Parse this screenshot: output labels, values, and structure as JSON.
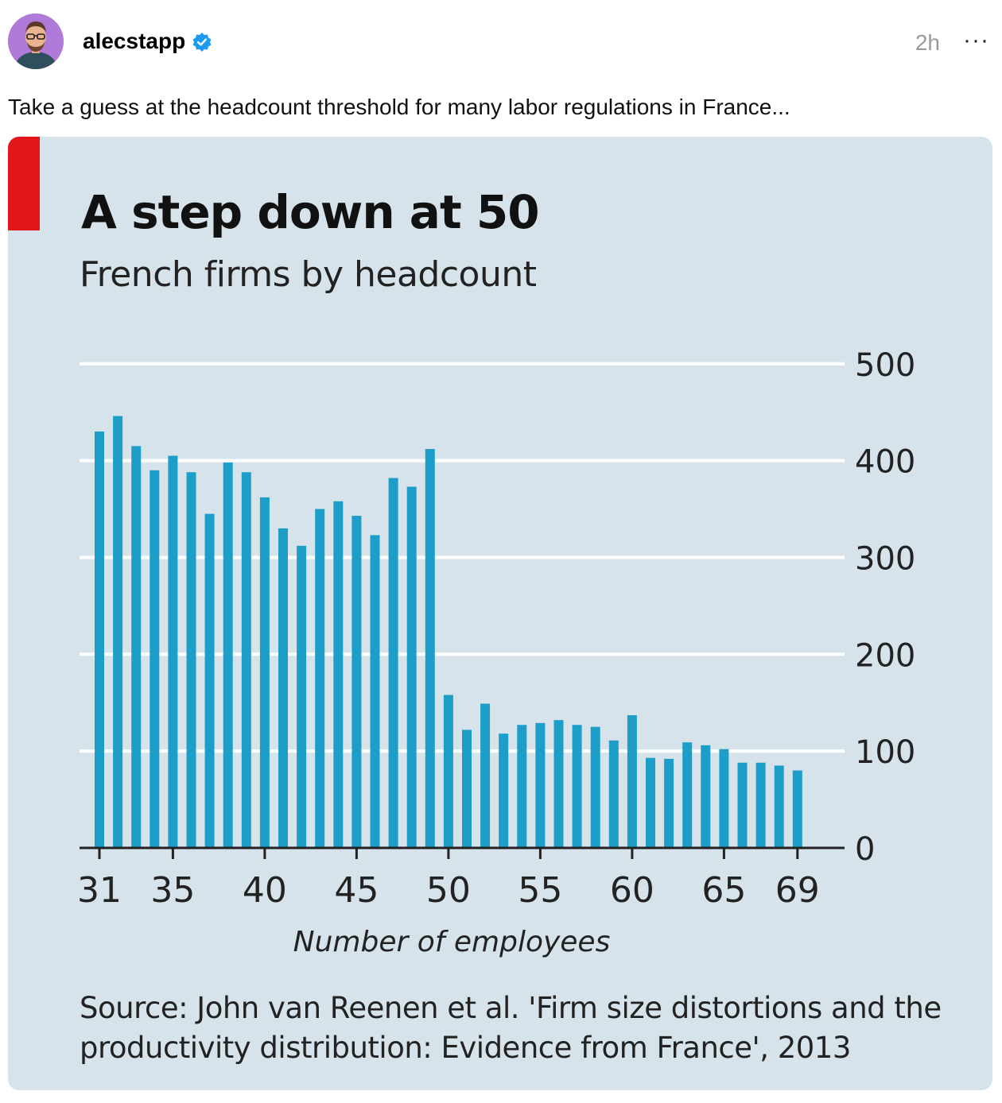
{
  "post": {
    "username": "alecstapp",
    "timestamp": "2h",
    "more_label": "···",
    "text": "Take a guess at the headcount threshold for many labor regulations in France...",
    "avatar_icon": "person-avatar-icon",
    "verified_icon": "verified-badge-icon"
  },
  "colors": {
    "bar": "#1c9ec9",
    "card_bg": "#d7e3ea",
    "accent_red": "#e3161b",
    "verified": "#1d9bf0"
  },
  "chart_data": {
    "type": "bar",
    "title": "A step down at 50",
    "subtitle": "French firms by headcount",
    "xlabel": "Number of employees",
    "ylabel": "",
    "ylim": [
      0,
      500
    ],
    "yticks": [
      0,
      100,
      200,
      300,
      400,
      500
    ],
    "xticks": [
      31,
      35,
      40,
      45,
      50,
      55,
      60,
      65,
      69
    ],
    "grid": true,
    "categories": [
      31,
      32,
      33,
      34,
      35,
      36,
      37,
      38,
      39,
      40,
      41,
      42,
      43,
      44,
      45,
      46,
      47,
      48,
      49,
      50,
      51,
      52,
      53,
      54,
      55,
      56,
      57,
      58,
      59,
      60,
      61,
      62,
      63,
      64,
      65,
      66,
      67,
      68,
      69
    ],
    "values": [
      430,
      446,
      415,
      390,
      405,
      388,
      345,
      398,
      388,
      362,
      330,
      312,
      350,
      358,
      343,
      323,
      382,
      373,
      412,
      158,
      122,
      149,
      118,
      127,
      129,
      132,
      127,
      125,
      111,
      137,
      93,
      92,
      109,
      106,
      102,
      88,
      88,
      85,
      80
    ],
    "source": "Source: John van Reenen et al. 'Firm size distortions and the productivity distribution: Evidence from France', 2013"
  }
}
